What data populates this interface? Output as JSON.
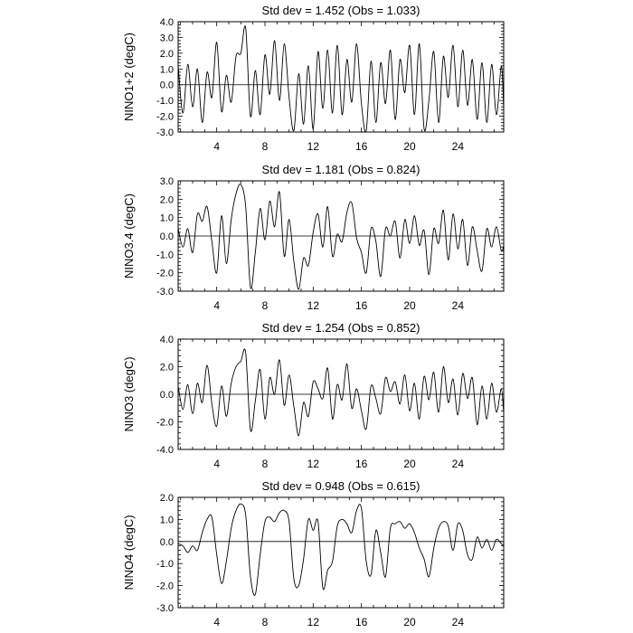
{
  "chart_data": [
    {
      "type": "line",
      "title": "Std dev = 1.452 (Obs = 1.033)",
      "ylabel": "NINO1+2 (degC)",
      "xlabel": "",
      "xlim": [
        0.8,
        27.8
      ],
      "ylim": [
        -3.0,
        4.0
      ],
      "xticks": [
        4,
        8,
        12,
        16,
        20,
        24
      ],
      "yticks": [
        -3.0,
        -2.0,
        -1.0,
        0.0,
        1.0,
        2.0,
        3.0,
        4.0
      ],
      "ytick_labels": [
        "-3.0",
        "-2.0",
        "-1.0",
        "0.0",
        "1.0",
        "2.0",
        "3.0",
        "4.0"
      ],
      "reference_line": 0.0,
      "grid": false,
      "series": [
        {
          "x": [
            0.8,
            1.2,
            1.6,
            2.0,
            2.4,
            2.8,
            3.2,
            3.6,
            4.0,
            4.4,
            4.8,
            5.2,
            5.6,
            6.0,
            6.4,
            6.8,
            7.2,
            7.6,
            8.0,
            8.4,
            8.8,
            9.2,
            9.6,
            10.0,
            10.4,
            10.8,
            11.2,
            11.6,
            12.0,
            12.4,
            12.8,
            13.2,
            13.6,
            14.0,
            14.4,
            14.8,
            15.2,
            15.6,
            16.0,
            16.4,
            16.8,
            17.2,
            17.6,
            18.0,
            18.4,
            18.8,
            19.2,
            19.6,
            20.0,
            20.4,
            20.8,
            21.2,
            21.6,
            22.0,
            22.4,
            22.8,
            23.2,
            23.6,
            24.0,
            24.4,
            24.8,
            25.2,
            25.6,
            26.0,
            26.4,
            26.8,
            27.2,
            27.6,
            27.8
          ],
          "y": [
            1.2,
            -1.8,
            1.3,
            -1.4,
            1.0,
            -2.4,
            0.8,
            -0.8,
            2.7,
            -1.7,
            0.6,
            -1.1,
            1.8,
            2.0,
            3.6,
            -2.0,
            0.9,
            -1.9,
            1.9,
            -0.6,
            2.8,
            -1.0,
            2.6,
            -0.8,
            -2.9,
            0.7,
            -2.5,
            1.2,
            -2.8,
            2.1,
            -1.5,
            2.2,
            -1.8,
            2.5,
            -1.9,
            1.6,
            -1.1,
            2.6,
            -1.2,
            -2.9,
            1.5,
            -2.4,
            1.4,
            -1.2,
            2.2,
            -2.2,
            1.6,
            -0.5,
            2.5,
            -1.9,
            2.6,
            -2.8,
            -1.0,
            2.1,
            -2.4,
            1.8,
            -0.8,
            2.5,
            -1.4,
            2.2,
            -1.3,
            1.6,
            -2.2,
            1.4,
            -2.4,
            1.3,
            -1.9,
            1.2,
            -1.6
          ]
        }
      ]
    },
    {
      "type": "line",
      "title": "Std dev = 1.181 (Obs = 0.824)",
      "ylabel": "NINO3.4 (degC)",
      "xlabel": "",
      "xlim": [
        0.8,
        27.8
      ],
      "ylim": [
        -3.0,
        3.0
      ],
      "xticks": [
        4,
        8,
        12,
        16,
        20,
        24
      ],
      "yticks": [
        -3.0,
        -2.0,
        -1.0,
        0.0,
        1.0,
        2.0,
        3.0
      ],
      "ytick_labels": [
        "-3.0",
        "-2.0",
        "-1.0",
        "0.0",
        "1.0",
        "2.0",
        "3.0"
      ],
      "reference_line": 0.0,
      "grid": false,
      "series": [
        {
          "x": [
            0.8,
            1.2,
            1.6,
            2.0,
            2.4,
            2.8,
            3.2,
            3.6,
            4.0,
            4.4,
            4.8,
            5.2,
            5.6,
            6.0,
            6.4,
            6.8,
            7.2,
            7.6,
            8.0,
            8.4,
            8.8,
            9.2,
            9.6,
            10.0,
            10.4,
            10.8,
            11.2,
            11.6,
            12.0,
            12.4,
            12.8,
            13.2,
            13.6,
            14.0,
            14.4,
            14.8,
            15.2,
            15.6,
            16.0,
            16.4,
            16.8,
            17.2,
            17.6,
            18.0,
            18.4,
            18.8,
            19.2,
            19.6,
            20.0,
            20.4,
            20.8,
            21.2,
            21.6,
            22.0,
            22.4,
            22.8,
            23.2,
            23.6,
            24.0,
            24.4,
            24.8,
            25.2,
            25.6,
            26.0,
            26.4,
            26.8,
            27.2,
            27.6,
            27.8
          ],
          "y": [
            0.4,
            -0.6,
            0.4,
            -0.9,
            1.2,
            0.8,
            1.6,
            -0.3,
            -2.0,
            1.1,
            -1.5,
            0.9,
            2.3,
            2.8,
            1.6,
            -2.8,
            -0.9,
            1.5,
            -0.2,
            1.9,
            0.5,
            2.4,
            -1.1,
            0.9,
            -1.4,
            -2.9,
            -1.2,
            -1.6,
            0.2,
            1.2,
            -0.6,
            1.6,
            -1.1,
            0.1,
            -0.3,
            1.3,
            1.8,
            -0.1,
            -0.9,
            -2.0,
            0.4,
            -0.3,
            -2.2,
            0.4,
            0.0,
            0.8,
            -1.2,
            0.9,
            -0.4,
            1.1,
            -0.5,
            0.3,
            -2.1,
            0.4,
            -0.4,
            1.4,
            -1.3,
            1.2,
            -0.7,
            0.9,
            -1.6,
            0.5,
            -0.8,
            -1.9,
            0.4,
            -0.6,
            0.5,
            -0.8,
            -0.5
          ]
        }
      ]
    },
    {
      "type": "line",
      "title": "Std dev = 1.254 (Obs = 0.852)",
      "ylabel": "NINO3 (degC)",
      "xlabel": "",
      "xlim": [
        0.8,
        27.8
      ],
      "ylim": [
        -4.0,
        4.0
      ],
      "xticks": [
        4,
        8,
        12,
        16,
        20,
        24
      ],
      "yticks": [
        -4.0,
        -2.0,
        0.0,
        2.0,
        4.0
      ],
      "ytick_labels": [
        "-4.0",
        "-2.0",
        "0.0",
        "2.0",
        "4.0"
      ],
      "reference_line": 0.0,
      "grid": false,
      "series": [
        {
          "x": [
            0.8,
            1.2,
            1.6,
            2.0,
            2.4,
            2.8,
            3.2,
            3.6,
            4.0,
            4.4,
            4.8,
            5.2,
            5.6,
            6.0,
            6.4,
            6.8,
            7.2,
            7.6,
            8.0,
            8.4,
            8.8,
            9.2,
            9.6,
            10.0,
            10.4,
            10.8,
            11.2,
            11.6,
            12.0,
            12.4,
            12.8,
            13.2,
            13.6,
            14.0,
            14.4,
            14.8,
            15.2,
            15.6,
            16.0,
            16.4,
            16.8,
            17.2,
            17.6,
            18.0,
            18.4,
            18.8,
            19.2,
            19.6,
            20.0,
            20.4,
            20.8,
            21.2,
            21.6,
            22.0,
            22.4,
            22.8,
            23.2,
            23.6,
            24.0,
            24.4,
            24.8,
            25.2,
            25.6,
            26.0,
            26.4,
            26.8,
            27.2,
            27.6,
            27.8
          ],
          "y": [
            0.6,
            -1.1,
            0.7,
            -1.4,
            0.8,
            -0.6,
            2.1,
            -0.7,
            -2.3,
            0.6,
            -1.6,
            0.8,
            2.0,
            2.4,
            3.0,
            -2.6,
            -0.5,
            1.8,
            -1.8,
            1.2,
            0.0,
            2.5,
            -0.8,
            1.4,
            -0.9,
            -3.0,
            -0.6,
            -1.6,
            0.9,
            0.4,
            -0.3,
            1.9,
            -1.8,
            0.7,
            -0.4,
            2.2,
            -1.0,
            0.4,
            -1.2,
            -2.5,
            0.6,
            -0.3,
            -1.4,
            1.2,
            0.2,
            0.9,
            -0.7,
            1.4,
            -1.2,
            0.8,
            -1.8,
            1.3,
            -0.4,
            1.6,
            -1.3,
            2.0,
            -0.6,
            1.1,
            -1.5,
            1.5,
            -0.3,
            1.2,
            -2.2,
            0.6,
            -1.8,
            0.8,
            -1.3,
            0.4,
            -1.4
          ]
        }
      ]
    },
    {
      "type": "line",
      "title": "Std dev = 0.948 (Obs = 0.615)",
      "ylabel": "NINO4 (degC)",
      "xlabel": "",
      "xlim": [
        0.8,
        27.8
      ],
      "ylim": [
        -3.0,
        2.0
      ],
      "xticks": [
        4,
        8,
        12,
        16,
        20,
        24
      ],
      "yticks": [
        -3.0,
        -2.0,
        -1.0,
        0.0,
        1.0,
        2.0
      ],
      "ytick_labels": [
        "-3.0",
        "-2.0",
        "-1.0",
        "0.0",
        "1.0",
        "2.0"
      ],
      "reference_line": 0.0,
      "grid": false,
      "series": [
        {
          "x": [
            0.8,
            1.2,
            1.6,
            2.0,
            2.4,
            2.8,
            3.2,
            3.6,
            4.0,
            4.4,
            4.8,
            5.2,
            5.6,
            6.0,
            6.4,
            6.8,
            7.2,
            7.6,
            8.0,
            8.4,
            8.8,
            9.2,
            9.6,
            10.0,
            10.4,
            10.8,
            11.2,
            11.6,
            12.0,
            12.4,
            12.8,
            13.2,
            13.6,
            14.0,
            14.4,
            14.8,
            15.2,
            15.6,
            16.0,
            16.4,
            16.8,
            17.2,
            17.6,
            18.0,
            18.4,
            18.8,
            19.2,
            19.6,
            20.0,
            20.4,
            20.8,
            21.2,
            21.6,
            22.0,
            22.4,
            22.8,
            23.2,
            23.6,
            24.0,
            24.4,
            24.8,
            25.2,
            25.6,
            26.0,
            26.4,
            26.8,
            27.2,
            27.6,
            27.8
          ],
          "y": [
            -0.1,
            -0.2,
            -0.5,
            -0.2,
            -0.4,
            0.4,
            1.0,
            1.1,
            -0.6,
            -1.9,
            -0.9,
            0.6,
            1.4,
            1.7,
            1.2,
            -1.6,
            -2.4,
            -0.6,
            0.9,
            1.1,
            0.9,
            1.3,
            1.4,
            0.9,
            -1.7,
            -2.0,
            -0.8,
            1.0,
            0.5,
            0.9,
            -2.1,
            -1.3,
            -0.9,
            0.7,
            1.0,
            0.8,
            0.4,
            1.4,
            1.5,
            -0.9,
            -1.5,
            0.5,
            -0.5,
            -1.6,
            0.6,
            0.8,
            0.9,
            0.6,
            0.8,
            0.4,
            -0.3,
            -0.8,
            -1.6,
            -0.3,
            0.6,
            0.9,
            0.7,
            -0.4,
            0.8,
            0.5,
            -0.6,
            -0.8,
            0.2,
            -0.3,
            0.1,
            -0.4,
            0.1,
            -0.1,
            -0.2
          ]
        }
      ]
    }
  ]
}
